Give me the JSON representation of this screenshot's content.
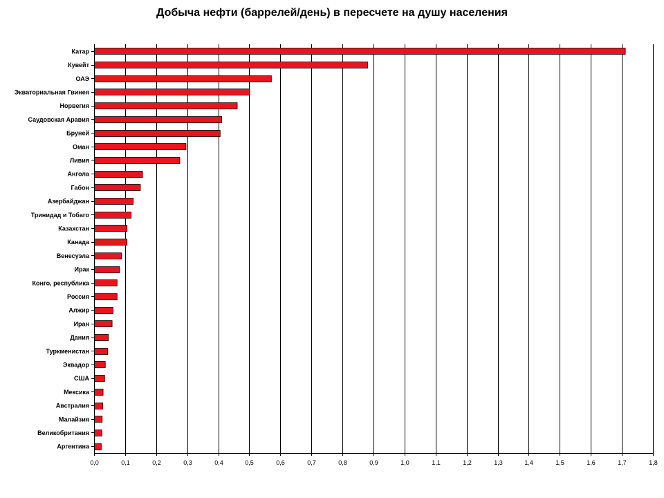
{
  "chart_data": {
    "type": "bar",
    "orientation": "horizontal",
    "title": "Добыча нефти (баррелей/день) в пересчете на душу населения",
    "xlabel": "",
    "ylabel": "",
    "xlim": [
      0,
      1.8
    ],
    "x_ticks": [
      "0,0",
      "0,1",
      "0,2",
      "0,3",
      "0,4",
      "0,5",
      "0,6",
      "0,7",
      "0,8",
      "0,9",
      "1,0",
      "1,1",
      "1,2",
      "1,3",
      "1,4",
      "1,5",
      "1,6",
      "1,7",
      "1,8"
    ],
    "grid": true,
    "legend": "none",
    "categories": [
      "Катар",
      "Кувейт",
      "ОАЭ",
      "Экваториальная Гвинея",
      "Норвегия",
      "Саудовская Аравия",
      "Бруней",
      "Оман",
      "Ливия",
      "Ангола",
      "Габон",
      "Азербайджан",
      "Тринидад и Тобаго",
      "Казахстан",
      "Канада",
      "Венесуэла",
      "Ирак",
      "Конго, республика",
      "Россия",
      "Алжир",
      "Иран",
      "Дания",
      "Туркменистан",
      "Эквадор",
      "США",
      "Мексика",
      "Австралия",
      "Малайзия",
      "Великобритания",
      "Аргентина"
    ],
    "values": [
      1.71,
      0.88,
      0.57,
      0.5,
      0.46,
      0.41,
      0.405,
      0.295,
      0.275,
      0.155,
      0.148,
      0.125,
      0.118,
      0.105,
      0.105,
      0.087,
      0.081,
      0.073,
      0.073,
      0.06,
      0.057,
      0.045,
      0.043,
      0.035,
      0.033,
      0.028,
      0.027,
      0.025,
      0.024,
      0.022
    ],
    "colors": {
      "bar": "#e8141e",
      "bar_outline": "#000000",
      "grid": "#000000",
      "axis": "#000000"
    }
  }
}
